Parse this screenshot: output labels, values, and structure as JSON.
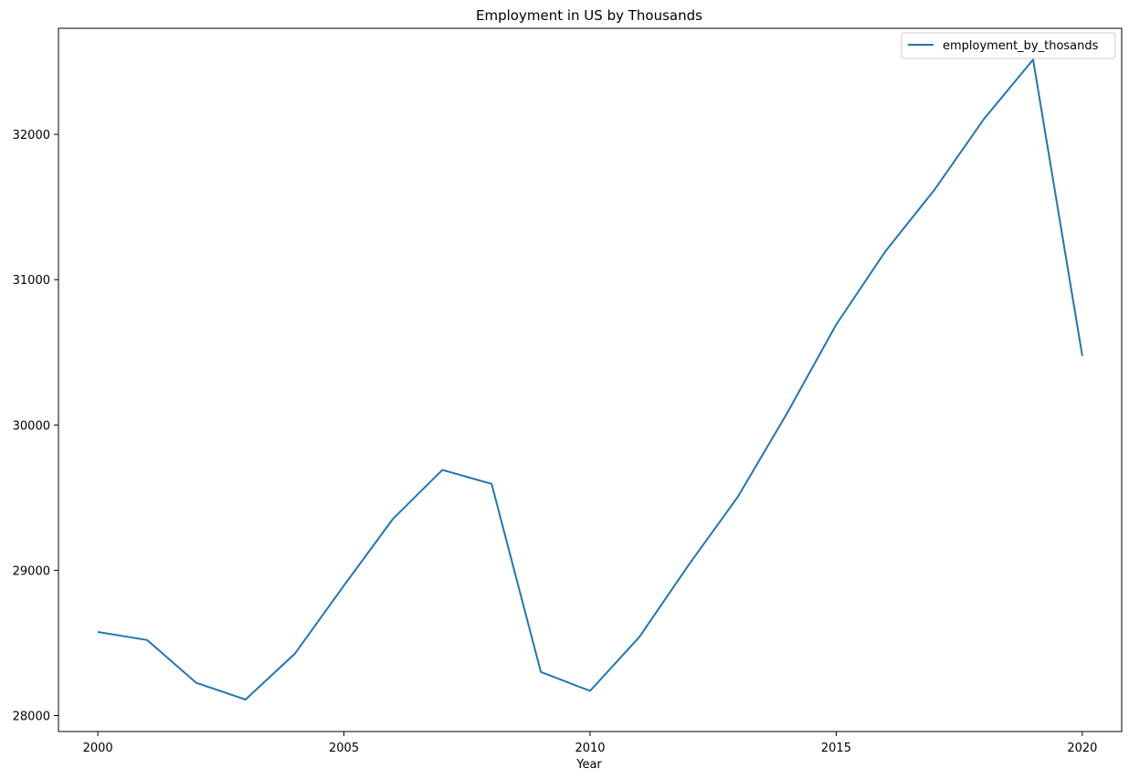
{
  "chart_data": {
    "type": "line",
    "title": "Employment in US by Thousands",
    "xlabel": "Year",
    "ylabel": "",
    "x": [
      2000,
      2001,
      2002,
      2003,
      2004,
      2005,
      2006,
      2007,
      2008,
      2009,
      2010,
      2011,
      2012,
      2013,
      2014,
      2015,
      2016,
      2017,
      2018,
      2019,
      2020
    ],
    "series": [
      {
        "name": "employment_by_thosands",
        "color": "#1f77b4",
        "values": [
          28575,
          28520,
          28225,
          28110,
          28425,
          28895,
          29355,
          29690,
          29595,
          28300,
          28170,
          28540,
          29035,
          29505,
          30080,
          30690,
          31195,
          31620,
          32105,
          32515,
          30475
        ]
      }
    ],
    "xlim": [
      1999.2,
      2020.8
    ],
    "ylim": [
      27890,
      32730
    ],
    "xticks": [
      2000,
      2005,
      2010,
      2015,
      2020
    ],
    "yticks": [
      28000,
      29000,
      30000,
      31000,
      32000
    ],
    "grid": false,
    "legend_position": "top-right"
  }
}
